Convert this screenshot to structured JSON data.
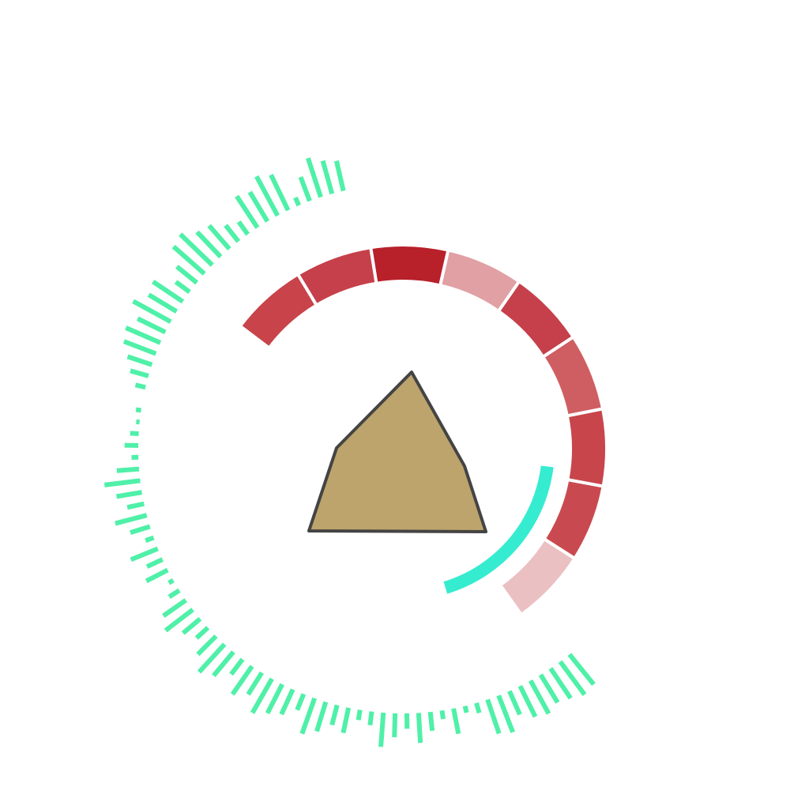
{
  "chart_data": {
    "type": "radial-bar",
    "color": "#4ff0a8",
    "ylim": [
      0,
      60
    ],
    "values": [
      45,
      48,
      42,
      38,
      44,
      40,
      30,
      46,
      42,
      12,
      8,
      30,
      10,
      22,
      35,
      18,
      28,
      40,
      16,
      12,
      30,
      24,
      36,
      44,
      20,
      32,
      38,
      46,
      30,
      40,
      22,
      36,
      44,
      30,
      18,
      26,
      40,
      32,
      14,
      6,
      28,
      20,
      34,
      10,
      24,
      38,
      20,
      30,
      42,
      26,
      8,
      16,
      10,
      4,
      6,
      0,
      12,
      22,
      30,
      40,
      44,
      36,
      50,
      38,
      42,
      20,
      30,
      48,
      52,
      40,
      36,
      24,
      18,
      44,
      40,
      52,
      46,
      10,
      30,
      48,
      40,
      36
    ]
  }
}
